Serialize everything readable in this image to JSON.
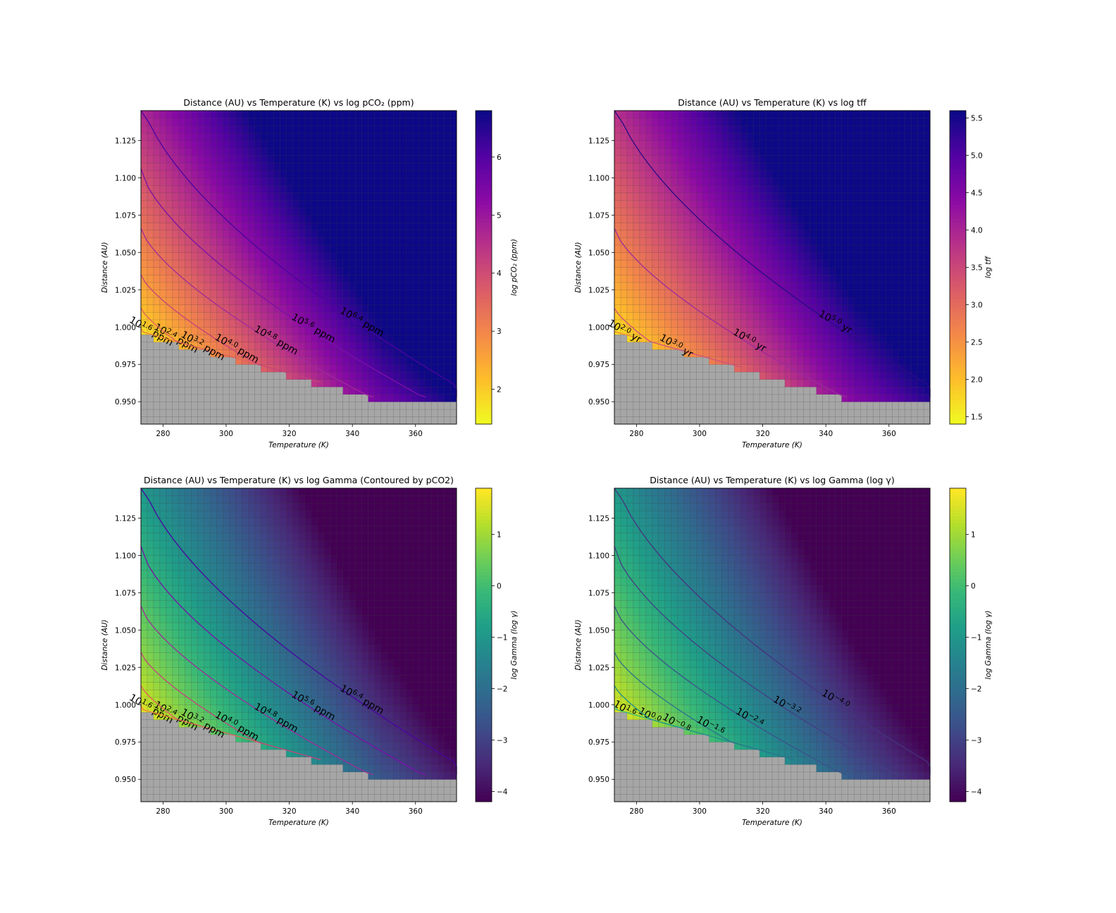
{
  "chart_data": [
    {
      "type": "heatmap",
      "title": "Distance  (AU)  vs  Temperature  (K)  vs  log pCO₂ (ppm)",
      "xlabel": "Temperature (K)",
      "ylabel": "Distance (AU)",
      "colorbar_label": "log pCO₂ (ppm)",
      "colormap": "plasma_r",
      "xlim": [
        273,
        373
      ],
      "ylim": [
        0.935,
        1.145
      ],
      "xticks": [
        "280",
        "300",
        "320",
        "340",
        "360"
      ],
      "yticks": [
        "0.950",
        "0.975",
        "1.000",
        "1.025",
        "1.050",
        "1.075",
        "1.100",
        "1.125"
      ],
      "clim": [
        1.4,
        6.8
      ],
      "cticks": [
        "2",
        "3",
        "4",
        "5",
        "6"
      ],
      "field": "pco2",
      "contours": [
        {
          "label": "10^1.6 ppm",
          "color": "#f8b130"
        },
        {
          "label": "10^2.4 ppm",
          "color": "#f3863d"
        },
        {
          "label": "10^3.2 ppm",
          "color": "#e0625b"
        },
        {
          "label": "10^4.0 ppm",
          "color": "#c5437b"
        },
        {
          "label": "10^4.8 ppm",
          "color": "#a02a9b"
        },
        {
          "label": "10^5.6 ppm",
          "color": "#7b10a8"
        },
        {
          "label": "10^6.4 ppm",
          "color": "#4a04a0"
        }
      ]
    },
    {
      "type": "heatmap",
      "title": "Distance  (AU) vs  Temperature  (K)  vs  log tff",
      "xlabel": "Temperature (K)",
      "ylabel": "Distance (AU)",
      "colorbar_label": "log tff",
      "colormap": "plasma_r",
      "xlim": [
        273,
        373
      ],
      "ylim": [
        0.935,
        1.145
      ],
      "xticks": [
        "280",
        "300",
        "320",
        "340",
        "360"
      ],
      "yticks": [
        "0.950",
        "0.975",
        "1.000",
        "1.025",
        "1.050",
        "1.075",
        "1.100",
        "1.125"
      ],
      "clim": [
        1.4,
        5.6
      ],
      "cticks": [
        "1.5",
        "2.0",
        "2.5",
        "3.0",
        "3.5",
        "4.0",
        "4.5",
        "5.0",
        "5.5"
      ],
      "field": "tff",
      "contours": [
        {
          "label": "10^2.0 yr",
          "color": "#f3863d"
        },
        {
          "label": "10^3.0 yr",
          "color": "#d0527a"
        },
        {
          "label": "10^4.0 yr",
          "color": "#9c2a9d"
        },
        {
          "label": "10^5.0 yr",
          "color": "#2a0a86"
        }
      ]
    },
    {
      "type": "heatmap",
      "title": "Distance  (AU)  vs  Temperature  (K)  vs  log Gamma  (Contoured by pCO2)",
      "xlabel": "Temperature (K)",
      "ylabel": "Distance (AU)",
      "colorbar_label": "log Gamma (log γ)",
      "colormap": "viridis",
      "xlim": [
        273,
        373
      ],
      "ylim": [
        0.935,
        1.145
      ],
      "xticks": [
        "280",
        "300",
        "320",
        "340",
        "360"
      ],
      "yticks": [
        "0.950",
        "0.975",
        "1.000",
        "1.025",
        "1.050",
        "1.075",
        "1.100",
        "1.125"
      ],
      "clim": [
        -4.2,
        1.9
      ],
      "cticks": [
        "1",
        "0",
        "−1",
        "−2",
        "−3",
        "−4"
      ],
      "field": "gamma",
      "contours": [
        {
          "label": "10^1.6 ppm",
          "color": "#f8b130"
        },
        {
          "label": "10^2.4 ppm",
          "color": "#f3863d"
        },
        {
          "label": "10^3.2 ppm",
          "color": "#e0625b"
        },
        {
          "label": "10^4.0 ppm",
          "color": "#c5437b"
        },
        {
          "label": "10^4.8 ppm",
          "color": "#a02a9b"
        },
        {
          "label": "10^5.6 ppm",
          "color": "#7b10a8"
        },
        {
          "label": "10^6.4 ppm",
          "color": "#4a04a0"
        }
      ]
    },
    {
      "type": "heatmap",
      "title": "Distance  (AU)  vs  Temperature  (K)  vs  log Gamma (log γ)",
      "xlabel": "Temperature (K)",
      "ylabel": "Distance (AU)",
      "colorbar_label": "log Gamma (log γ)",
      "colormap": "viridis",
      "xlim": [
        273,
        373
      ],
      "ylim": [
        0.935,
        1.145
      ],
      "xticks": [
        "280",
        "300",
        "320",
        "340",
        "360"
      ],
      "yticks": [
        "0.950",
        "0.975",
        "1.000",
        "1.025",
        "1.050",
        "1.075",
        "1.100",
        "1.125"
      ],
      "clim": [
        -4.2,
        1.9
      ],
      "cticks": [
        "1",
        "0",
        "−1",
        "−2",
        "−3",
        "−4"
      ],
      "field": "gamma",
      "contours": [
        {
          "label": "10^1.6",
          "color": "#7ad151"
        },
        {
          "label": "10^0.0",
          "color": "#35b779"
        },
        {
          "label": "10^-0.8",
          "color": "#21918c"
        },
        {
          "label": "10^-1.6",
          "color": "#2c728e"
        },
        {
          "label": "10^-2.4",
          "color": "#3b528b"
        },
        {
          "label": "10^-3.2",
          "color": "#433e85"
        },
        {
          "label": "10^-4.0",
          "color": "#46337f"
        }
      ]
    }
  ]
}
